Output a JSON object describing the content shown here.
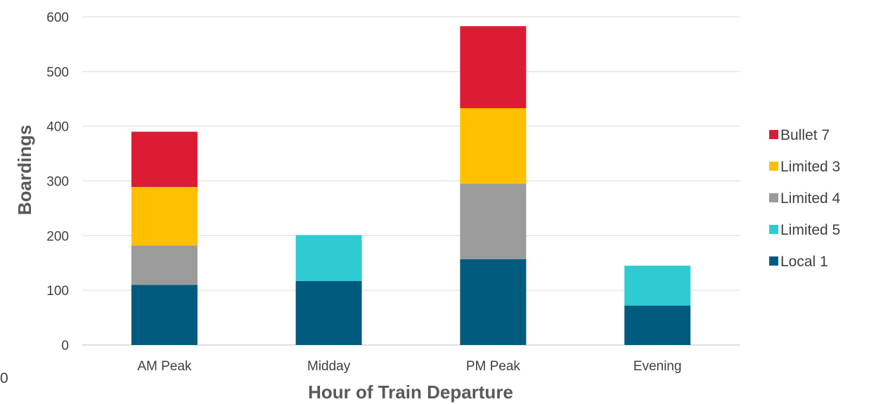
{
  "chart_data": {
    "type": "bar",
    "stacked": true,
    "categories": [
      "AM Peak",
      "Midday",
      "PM Peak",
      "Evening"
    ],
    "series": [
      {
        "name": "Local 1",
        "color": "#005B7F",
        "values": [
          110,
          117,
          157,
          72
        ]
      },
      {
        "name": "Limited 5",
        "color": "#2ECBD2",
        "values": [
          0,
          84,
          0,
          73
        ]
      },
      {
        "name": "Limited 4",
        "color": "#9B9B9B",
        "values": [
          72,
          0,
          138,
          0
        ]
      },
      {
        "name": "Limited 3",
        "color": "#FFC000",
        "values": [
          107,
          0,
          138,
          0
        ]
      },
      {
        "name": "Bullet 7",
        "color": "#DC1C34",
        "values": [
          101,
          0,
          150,
          0
        ]
      }
    ],
    "legend_order": [
      "Bullet 7",
      "Limited 3",
      "Limited 4",
      "Limited 5",
      "Local 1"
    ],
    "legend_position": "right",
    "xlabel": "Hour of Train Departure",
    "ylabel": "Boardings",
    "ylim": [
      0,
      600
    ],
    "yticks": [
      0,
      100,
      200,
      300,
      400,
      500,
      600
    ],
    "grid": true,
    "stray_label": "0"
  }
}
